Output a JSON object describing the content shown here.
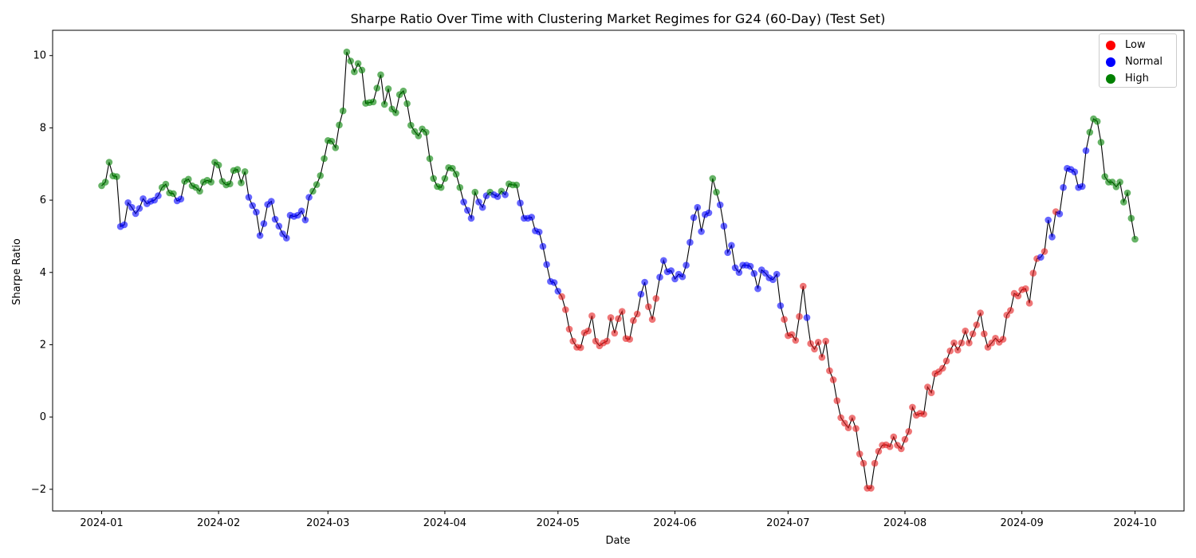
{
  "chart_data": {
    "type": "scatter",
    "title": "Sharpe Ratio Over Time with Clustering Market Regimes for G24 (60-Day) (Test Set)",
    "xlabel": "Date",
    "ylabel": "Sharpe Ratio",
    "x_ticks": [
      "2024-01",
      "2024-02",
      "2024-03",
      "2024-04",
      "2024-05",
      "2024-06",
      "2024-07",
      "2024-08",
      "2024-09",
      "2024-10"
    ],
    "y_ticks": [
      -2,
      0,
      2,
      4,
      6,
      8,
      10
    ],
    "xlim": [
      "2023-12-19",
      "2024-10-14"
    ],
    "ylim": [
      -2.6,
      10.7
    ],
    "grid": false,
    "legend_position": "top-right",
    "line_color": "#000000",
    "regime_colors": {
      "Low": "#e41a1c",
      "Normal": "#0000ff",
      "High": "#008000"
    },
    "series": [
      {
        "name": "Low",
        "color": "#e41a1c"
      },
      {
        "name": "Normal",
        "color": "#0000ff"
      },
      {
        "name": "High",
        "color": "#008000"
      }
    ],
    "start_date": "2024-01-01",
    "values": [
      6.4,
      6.5,
      7.05,
      6.67,
      6.65,
      5.27,
      5.32,
      5.93,
      5.8,
      5.63,
      5.77,
      6.04,
      5.9,
      5.97,
      6.0,
      6.12,
      6.35,
      6.44,
      6.2,
      6.18,
      5.98,
      6.03,
      6.52,
      6.58,
      6.4,
      6.35,
      6.25,
      6.5,
      6.55,
      6.5,
      7.05,
      6.97,
      6.52,
      6.42,
      6.45,
      6.82,
      6.85,
      6.48,
      6.79,
      6.08,
      5.85,
      5.67,
      5.02,
      5.35,
      5.88,
      5.97,
      5.47,
      5.28,
      5.07,
      4.95,
      5.58,
      5.55,
      5.58,
      5.7,
      5.45,
      6.08,
      6.25,
      6.43,
      6.68,
      7.15,
      7.65,
      7.63,
      7.45,
      8.08,
      8.47,
      10.1,
      9.85,
      9.55,
      9.78,
      9.6,
      8.68,
      8.7,
      8.72,
      9.1,
      9.47,
      8.65,
      9.08,
      8.52,
      8.42,
      8.92,
      9.02,
      8.67,
      8.07,
      7.9,
      7.78,
      7.97,
      7.88,
      7.15,
      6.6,
      6.38,
      6.35,
      6.6,
      6.9,
      6.88,
      6.72,
      6.35,
      5.95,
      5.72,
      5.5,
      6.22,
      5.95,
      5.8,
      6.12,
      6.22,
      6.15,
      6.1,
      6.25,
      6.15,
      6.45,
      6.42,
      6.42,
      5.92,
      5.5,
      5.5,
      5.53,
      5.15,
      5.12,
      4.72,
      4.22,
      3.75,
      3.72,
      3.48,
      3.33,
      2.97,
      2.43,
      2.1,
      1.93,
      1.92,
      2.33,
      2.38,
      2.8,
      2.1,
      1.97,
      2.05,
      2.1,
      2.75,
      2.32,
      2.72,
      2.92,
      2.17,
      2.15,
      2.67,
      2.85,
      3.4,
      3.73,
      3.05,
      2.7,
      3.28,
      3.87,
      4.33,
      4.02,
      4.05,
      3.82,
      3.95,
      3.88,
      4.2,
      4.83,
      5.52,
      5.8,
      5.13,
      5.6,
      5.65,
      6.6,
      6.22,
      5.87,
      5.28,
      4.55,
      4.75,
      4.13,
      4.0,
      4.2,
      4.2,
      4.17,
      3.97,
      3.55,
      4.07,
      3.98,
      3.85,
      3.8,
      3.95,
      3.08,
      2.7,
      2.25,
      2.28,
      2.12,
      2.78,
      3.62,
      2.75,
      2.03,
      1.88,
      2.07,
      1.65,
      2.1,
      1.28,
      1.03,
      0.45,
      -0.02,
      -0.17,
      -0.3,
      -0.03,
      -0.32,
      -1.02,
      -1.28,
      -1.97,
      -1.97,
      -1.28,
      -0.95,
      -0.78,
      -0.77,
      -0.82,
      -0.55,
      -0.78,
      -0.88,
      -0.62,
      -0.4,
      0.27,
      0.05,
      0.1,
      0.08,
      0.83,
      0.67,
      1.2,
      1.25,
      1.35,
      1.55,
      1.83,
      2.05,
      1.85,
      2.05,
      2.38,
      2.05,
      2.3,
      2.55,
      2.88,
      2.3,
      1.93,
      2.05,
      2.18,
      2.07,
      2.15,
      2.82,
      2.95,
      3.42,
      3.35,
      3.52,
      3.55,
      3.15,
      3.98,
      4.38,
      4.42,
      4.58,
      5.45,
      4.98,
      5.68,
      5.62,
      6.35,
      6.88,
      6.85,
      6.78,
      6.35,
      6.38,
      7.37,
      7.88,
      8.25,
      8.18,
      7.6,
      6.65,
      6.5,
      6.5,
      6.37,
      6.5,
      5.95,
      6.2,
      5.5,
      4.92
    ],
    "regimes": [
      "H",
      "H",
      "H",
      "H",
      "H",
      "N",
      "N",
      "N",
      "N",
      "N",
      "N",
      "N",
      "N",
      "N",
      "N",
      "N",
      "H",
      "H",
      "H",
      "H",
      "N",
      "N",
      "H",
      "H",
      "H",
      "H",
      "H",
      "H",
      "H",
      "H",
      "H",
      "H",
      "H",
      "H",
      "H",
      "H",
      "H",
      "H",
      "H",
      "N",
      "N",
      "N",
      "N",
      "N",
      "N",
      "N",
      "N",
      "N",
      "N",
      "N",
      "N",
      "N",
      "N",
      "N",
      "N",
      "N",
      "H",
      "H",
      "H",
      "H",
      "H",
      "H",
      "H",
      "H",
      "H",
      "H",
      "H",
      "H",
      "H",
      "H",
      "H",
      "H",
      "H",
      "H",
      "H",
      "H",
      "H",
      "H",
      "H",
      "H",
      "H",
      "H",
      "H",
      "H",
      "H",
      "H",
      "H",
      "H",
      "H",
      "H",
      "H",
      "H",
      "H",
      "H",
      "H",
      "H",
      "N",
      "N",
      "N",
      "H",
      "N",
      "N",
      "N",
      "H",
      "N",
      "N",
      "H",
      "N",
      "H",
      "H",
      "H",
      "N",
      "N",
      "N",
      "N",
      "N",
      "N",
      "N",
      "N",
      "N",
      "N",
      "N",
      "L",
      "L",
      "L",
      "L",
      "L",
      "L",
      "L",
      "L",
      "L",
      "L",
      "L",
      "L",
      "L",
      "L",
      "L",
      "L",
      "L",
      "L",
      "L",
      "L",
      "L",
      "N",
      "N",
      "L",
      "L",
      "L",
      "N",
      "N",
      "N",
      "N",
      "N",
      "N",
      "N",
      "N",
      "N",
      "N",
      "N",
      "N",
      "N",
      "N",
      "H",
      "H",
      "N",
      "N",
      "N",
      "N",
      "N",
      "N",
      "N",
      "N",
      "N",
      "N",
      "N",
      "N",
      "N",
      "N",
      "N",
      "N",
      "N",
      "L",
      "L",
      "L",
      "L",
      "L",
      "L",
      "N",
      "L",
      "L",
      "L",
      "L",
      "L",
      "L",
      "L",
      "L",
      "L",
      "L",
      "L",
      "L",
      "L",
      "L",
      "L",
      "L",
      "L",
      "L",
      "L",
      "L",
      "L",
      "L",
      "L",
      "L",
      "L",
      "L",
      "L",
      "L",
      "L",
      "L",
      "L",
      "L",
      "L",
      "L",
      "L",
      "L",
      "L",
      "L",
      "L",
      "L",
      "L",
      "L",
      "L",
      "L",
      "L",
      "L",
      "L",
      "L",
      "L",
      "L",
      "L",
      "L",
      "L",
      "L",
      "L",
      "L",
      "L",
      "L",
      "L",
      "L",
      "L",
      "N",
      "L",
      "N",
      "N",
      "L",
      "N",
      "N",
      "N",
      "N",
      "N",
      "N",
      "N",
      "N",
      "H",
      "H",
      "H",
      "H",
      "H",
      "H",
      "H",
      "H",
      "H",
      "H",
      "H",
      "H",
      "H",
      "H",
      "H",
      "H",
      "N",
      "H",
      "N",
      "N"
    ]
  }
}
